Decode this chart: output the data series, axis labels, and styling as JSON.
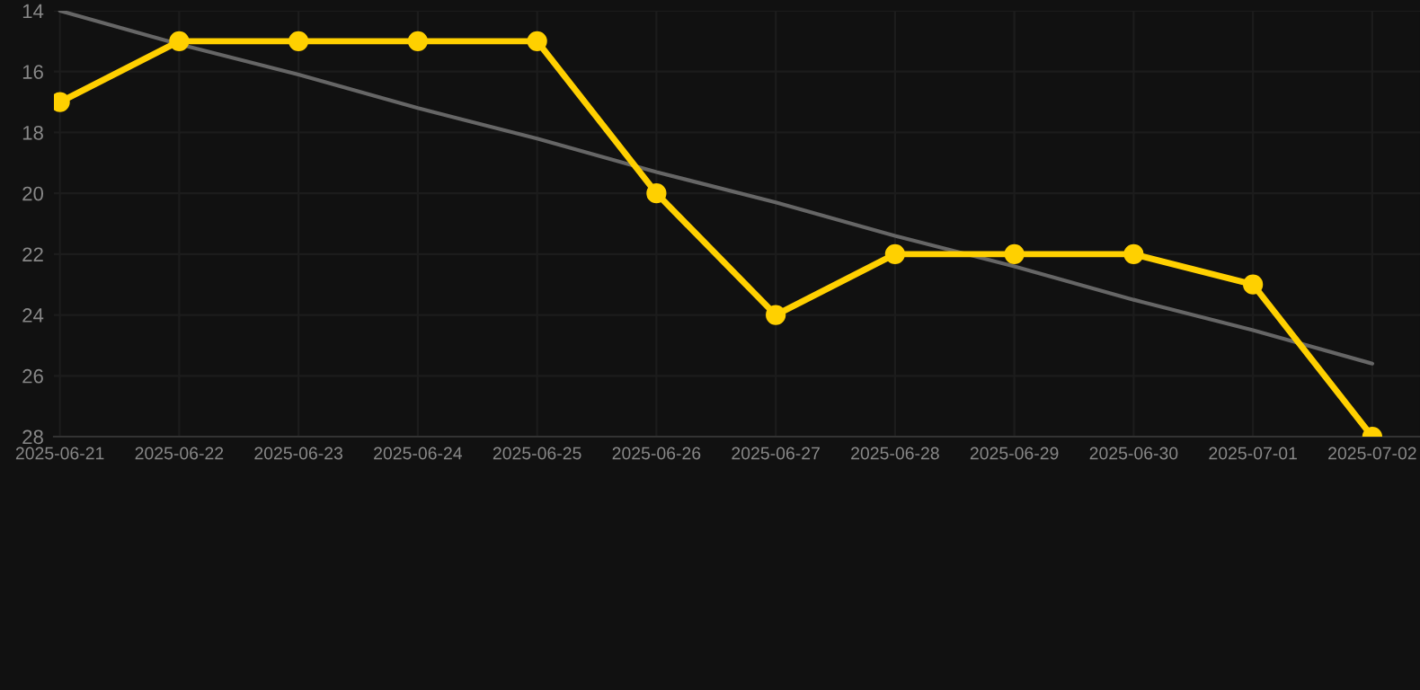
{
  "chart_data": {
    "type": "line",
    "categories": [
      "2025-06-21",
      "2025-06-22",
      "2025-06-23",
      "2025-06-24",
      "2025-06-25",
      "2025-06-26",
      "2025-06-27",
      "2025-06-28",
      "2025-06-29",
      "2025-06-30",
      "2025-07-01",
      "2025-07-02"
    ],
    "series": [
      {
        "color": "#ffd000",
        "values": [
          17,
          15,
          15,
          15,
          15,
          20,
          24,
          22,
          22,
          22,
          23,
          28
        ],
        "marker": "circle"
      },
      {
        "type": "line",
        "color": "#666666",
        "values": [
          14,
          15.1,
          16.1,
          17.2,
          18.2,
          19.3,
          20.3,
          21.4,
          22.4,
          23.5,
          24.5,
          25.6
        ],
        "marker": "none"
      }
    ],
    "ylim": [
      28,
      14
    ],
    "yticks": [
      14,
      16,
      18,
      20,
      22,
      24,
      26,
      28
    ],
    "grid": true
  }
}
